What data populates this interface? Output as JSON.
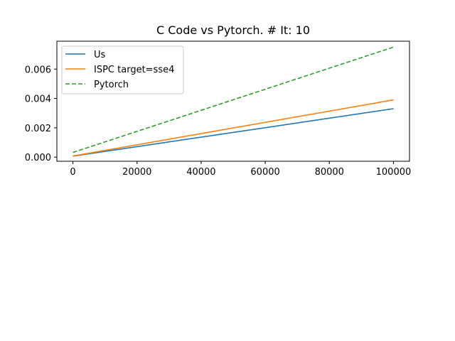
{
  "chart_data": {
    "type": "line",
    "title": "C Code vs Pytorch. # It: 10",
    "xlabel": "",
    "ylabel": "",
    "xlim": [
      -5000,
      105000
    ],
    "ylim": [
      -0.00028,
      0.0079
    ],
    "xticks": [
      0,
      20000,
      40000,
      60000,
      80000,
      100000
    ],
    "xtick_labels": [
      "0",
      "20000",
      "40000",
      "60000",
      "80000",
      "100000"
    ],
    "yticks": [
      0.0,
      0.002,
      0.004,
      0.006
    ],
    "ytick_labels": [
      "0.000",
      "0.002",
      "0.004",
      "0.006"
    ],
    "grid": false,
    "legend_position": "upper-left",
    "series": [
      {
        "name": "Us",
        "color": "#1f77b4",
        "dash": "solid",
        "x": [
          0,
          100000
        ],
        "y": [
          7e-05,
          0.0033
        ]
      },
      {
        "name": "ISPC target=sse4",
        "color": "#ff7f0e",
        "dash": "solid",
        "x": [
          0,
          100000
        ],
        "y": [
          8e-05,
          0.0039
        ]
      },
      {
        "name": "Pytorch",
        "color": "#2ca02c",
        "dash": "dashed",
        "x": [
          0,
          100000
        ],
        "y": [
          0.00032,
          0.0075
        ]
      }
    ]
  }
}
